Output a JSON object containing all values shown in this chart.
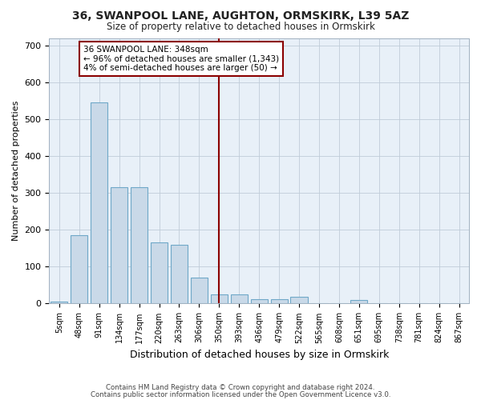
{
  "title": "36, SWANPOOL LANE, AUGHTON, ORMSKIRK, L39 5AZ",
  "subtitle": "Size of property relative to detached houses in Ormskirk",
  "xlabel": "Distribution of detached houses by size in Ormskirk",
  "ylabel": "Number of detached properties",
  "categories": [
    "5sqm",
    "48sqm",
    "91sqm",
    "134sqm",
    "177sqm",
    "220sqm",
    "263sqm",
    "306sqm",
    "350sqm",
    "393sqm",
    "436sqm",
    "479sqm",
    "522sqm",
    "565sqm",
    "608sqm",
    "651sqm",
    "695sqm",
    "738sqm",
    "781sqm",
    "824sqm",
    "867sqm"
  ],
  "values": [
    5,
    185,
    545,
    315,
    315,
    165,
    160,
    70,
    25,
    25,
    12,
    12,
    18,
    0,
    0,
    10,
    0,
    0,
    0,
    0,
    0
  ],
  "bar_color": "#c9d9e8",
  "bar_edge_color": "#6fa8c8",
  "vline_x_idx": 8,
  "vline_color": "#8b0000",
  "annotation_title": "36 SWANPOOL LANE: 348sqm",
  "annotation_line1": "← 96% of detached houses are smaller (1,343)",
  "annotation_line2": "4% of semi-detached houses are larger (50) →",
  "annotation_box_color": "#8b0000",
  "ylim": [
    0,
    720
  ],
  "yticks": [
    0,
    100,
    200,
    300,
    400,
    500,
    600,
    700
  ],
  "grid_color": "#c0ccd8",
  "bg_color": "#e8f0f8",
  "footer1": "Contains HM Land Registry data © Crown copyright and database right 2024.",
  "footer2": "Contains public sector information licensed under the Open Government Licence v3.0."
}
